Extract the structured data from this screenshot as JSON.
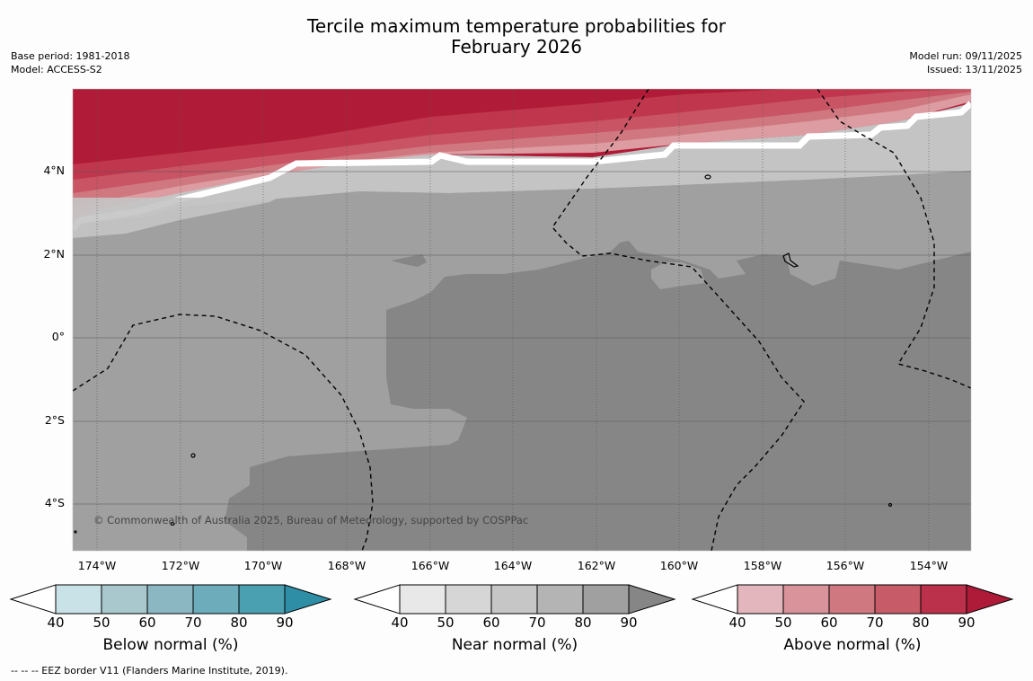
{
  "title": {
    "line1": "Tercile maximum temperature probabilities for",
    "line2": "February 2026"
  },
  "meta_left": {
    "base_period": "Base period: 1981-2018",
    "model": "Model: ACCESS-S2"
  },
  "meta_right": {
    "model_run": "Model run: 09/11/2025",
    "issued": "Issued: 13/11/2025"
  },
  "map": {
    "lon_ticks": [
      "174°W",
      "172°W",
      "170°W",
      "168°W",
      "166°W",
      "164°W",
      "162°W",
      "160°W",
      "158°W",
      "156°W",
      "154°W"
    ],
    "lat_ticks": [
      "4°N",
      "2°N",
      "0°",
      "2°S",
      "4°S"
    ],
    "copyright": "© Commonwealth of Australia 2025, Bureau of Meteorology, supported by COSPPac",
    "colors": {
      "near_80": "#a0a0a0",
      "near_90": "#868686",
      "near_70": "#c4c4c4",
      "above_90": "#b01c38",
      "above_80": "#c0374d",
      "above_70": "#c85464",
      "above_60": "#d07880",
      "above_50": "#dc9ca2"
    }
  },
  "colorbars": [
    {
      "title": "Below normal (%)",
      "ticks": [
        "40",
        "50",
        "60",
        "70",
        "80",
        "90"
      ],
      "colors": [
        "#c9e2e8",
        "#a9c8cd",
        "#8bb7c3",
        "#6cacbb",
        "#4a9fb0",
        "#2d8ea6"
      ]
    },
    {
      "title": "Near normal (%)",
      "ticks": [
        "40",
        "50",
        "60",
        "70",
        "80",
        "90"
      ],
      "colors": [
        "#e8e8e8",
        "#d6d6d6",
        "#c6c6c6",
        "#b4b4b4",
        "#a0a0a0",
        "#868686"
      ]
    },
    {
      "title": "Above normal (%)",
      "ticks": [
        "40",
        "50",
        "60",
        "70",
        "80",
        "90"
      ],
      "colors": [
        "#e2b6bc",
        "#d9939a",
        "#cf7880",
        "#c75b68",
        "#bb304a",
        "#ad1b38"
      ]
    }
  ],
  "footnote": "--  --  -- EEZ border V11 (Flanders Marine Institute, 2019)."
}
